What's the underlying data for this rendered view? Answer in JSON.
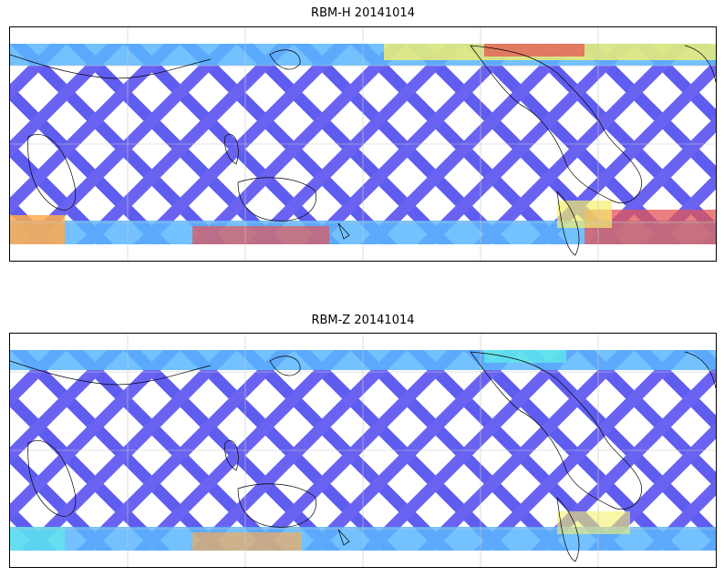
{
  "panels": [
    {
      "title": "RBM-H 20141014"
    },
    {
      "title": "RBM-Z 20141014"
    }
  ],
  "colors": {
    "swath_low": "#5f5cf0",
    "swath_mid": "#5ab6ff",
    "swath_cyan": "#5ef0e6",
    "swath_yellow": "#f5f06a",
    "swath_orange": "#ffaa4d",
    "swath_red": "#e45454",
    "grid": "#c8c8c8",
    "coast": "#000000"
  },
  "map": {
    "projection": "equirectangular",
    "gridlines": true,
    "coastlines": true
  }
}
